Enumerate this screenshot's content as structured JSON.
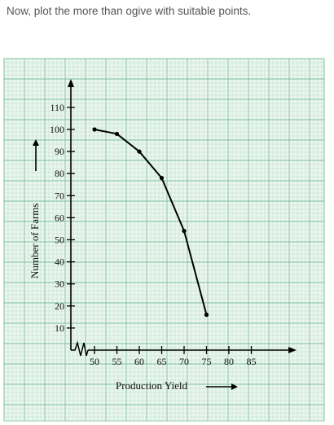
{
  "intro": "Now, plot the more than ogive with suitable points.",
  "chart_data": {
    "type": "line",
    "xlabel": "Production Yield",
    "ylabel": "Number of Farms",
    "x_ticks": [
      "50",
      "55",
      "60",
      "65",
      "70",
      "75",
      "80",
      "85"
    ],
    "y_ticks": [
      "10",
      "20",
      "30",
      "40",
      "50",
      "60",
      "70",
      "80",
      "90",
      "100",
      "110"
    ],
    "xlim": [
      50,
      85
    ],
    "ylim": [
      0,
      110
    ],
    "axis_break": true,
    "grid": true,
    "series": [
      {
        "x": [
          50,
          55,
          60,
          65,
          70,
          75
        ],
        "y": [
          100,
          98,
          90,
          78,
          54,
          16
        ]
      }
    ],
    "colors": {
      "grid_fine": "#b8dcc7",
      "grid_major": "#7fbf9c",
      "paper": "#eaf6ef",
      "line": "#000000"
    }
  }
}
